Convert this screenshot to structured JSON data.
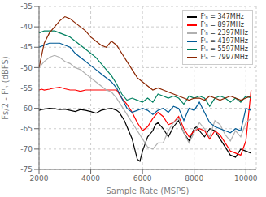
{
  "chart_data": {
    "type": "line",
    "xlabel": "Sample Rate (MSPS)",
    "ylabel": "Fs/2 - Fᴵₙ (dBFS)",
    "xlim": [
      2000,
      10400
    ],
    "ylim": [
      -75,
      -35
    ],
    "xticks": [
      2000,
      4000,
      6000,
      8000,
      10000
    ],
    "yticks": [
      -75,
      -70,
      -65,
      -60,
      -55,
      -50,
      -45,
      -40,
      -35
    ],
    "grid": true,
    "legend": "upper right",
    "series": [
      {
        "name": "Fᴵₙ = 347MHz",
        "color": "#000000",
        "x": [
          2000,
          2100,
          2200,
          2400,
          2600,
          2800,
          3000,
          3200,
          3400,
          3600,
          3800,
          4000,
          4200,
          4400,
          4600,
          4800,
          5000,
          5100,
          5200,
          5300,
          5400,
          5500,
          5600,
          5700,
          5800,
          5900,
          6000,
          6200,
          6400,
          6500,
          6600,
          6800,
          7000,
          7200,
          7400,
          7600,
          7800,
          8000,
          8100,
          8200,
          8400,
          8600,
          8800,
          9000,
          9200,
          9400,
          9600,
          9800,
          10000,
          10200
        ],
        "values": [
          -60.5,
          -60.3,
          -60.2,
          -60.0,
          -60.1,
          -60.3,
          -60.2,
          -60.5,
          -60.8,
          -60.3,
          -60.5,
          -60.8,
          -61.2,
          -60.5,
          -60.2,
          -60.0,
          -60.5,
          -61.0,
          -62.0,
          -63.0,
          -64.5,
          -66.0,
          -67.5,
          -70.0,
          -72.5,
          -73.0,
          -70.5,
          -67.0,
          -65.5,
          -64.0,
          -63.5,
          -65.0,
          -67.0,
          -64.5,
          -63.0,
          -66.0,
          -68.0,
          -65.0,
          -64.5,
          -65.5,
          -67.0,
          -65.0,
          -65.5,
          -67.5,
          -69.5,
          -71.5,
          -72.0,
          -70.0,
          -70.5,
          -71.0
        ]
      },
      {
        "name": "Fᴵₙ = 897MHz",
        "color": "#ff0000",
        "x": [
          2000,
          2100,
          2200,
          2400,
          2600,
          2800,
          3000,
          3200,
          3400,
          3600,
          3800,
          4000,
          4200,
          4400,
          4600,
          4800,
          5000,
          5200,
          5400,
          5600,
          5800,
          6000,
          6200,
          6400,
          6600,
          6800,
          7000,
          7200,
          7400,
          7600,
          7800,
          8000,
          8200,
          8400,
          8600,
          8800,
          9000,
          9200,
          9400,
          9600,
          9800,
          10000,
          10200
        ],
        "values": [
          -55.5,
          -55.3,
          -55.5,
          -55.3,
          -55.0,
          -54.8,
          -55.2,
          -55.5,
          -55.5,
          -55.8,
          -55.5,
          -55.5,
          -55.5,
          -55.5,
          -55.5,
          -55.5,
          -55.5,
          -57.5,
          -59.0,
          -61.0,
          -63.5,
          -65.5,
          -64.5,
          -62.5,
          -61.0,
          -62.0,
          -64.0,
          -63.5,
          -62.0,
          -65.0,
          -67.0,
          -65.5,
          -65.0,
          -65.5,
          -67.5,
          -65.5,
          -66.5,
          -68.5,
          -70.5,
          -71.0,
          -71.5,
          -68.0,
          -55.5
        ]
      },
      {
        "name": "Fᴵₙ = 2397MHz",
        "color": "#b0b0b0",
        "x": [
          2000,
          2200,
          2400,
          2600,
          2800,
          3000,
          3200,
          3400,
          3600,
          3800,
          4000,
          4200,
          4400,
          4600,
          4800,
          5000,
          5200,
          5400,
          5600,
          5800,
          6000,
          6200,
          6400,
          6600,
          6800,
          7000,
          7200,
          7400,
          7600,
          7800,
          8000,
          8200,
          8400,
          8600,
          8800,
          9000,
          9200,
          9400,
          9600,
          9800,
          10000,
          10200
        ],
        "values": [
          -50.0,
          -48.5,
          -47.5,
          -47.0,
          -47.5,
          -48.5,
          -49.0,
          -50.0,
          -50.5,
          -51.5,
          -52.5,
          -53.5,
          -54.5,
          -55.5,
          -56.0,
          -57.5,
          -59.5,
          -61.5,
          -63.5,
          -65.5,
          -67.5,
          -69.5,
          -70.0,
          -68.5,
          -68.5,
          -65.5,
          -63.5,
          -62.5,
          -66.0,
          -68.5,
          -66.0,
          -63.5,
          -65.0,
          -67.0,
          -63.0,
          -64.0,
          -66.5,
          -68.0,
          -65.5,
          -67.0,
          -63.5,
          -62.5
        ]
      },
      {
        "name": "Fᴵₙ = 4197MHz",
        "color": "#005b96",
        "x": [
          2000,
          2200,
          2400,
          2600,
          2800,
          3000,
          3200,
          3400,
          3600,
          3800,
          4000,
          4200,
          4400,
          4600,
          4800,
          5000,
          5200,
          5400,
          5600,
          5800,
          6000,
          6200,
          6400,
          6600,
          6800,
          7000,
          7200,
          7400,
          7600,
          7800,
          8000,
          8200,
          8400,
          8600,
          8800,
          9000,
          9200,
          9400,
          9600,
          9800,
          10000,
          10200
        ],
        "values": [
          -45.0,
          -44.5,
          -44.0,
          -44.0,
          -44.0,
          -44.5,
          -45.0,
          -46.5,
          -47.5,
          -48.5,
          -49.5,
          -50.5,
          -51.5,
          -52.5,
          -53.5,
          -55.0,
          -57.5,
          -60.0,
          -61.0,
          -60.5,
          -60.0,
          -60.5,
          -61.5,
          -60.5,
          -60.0,
          -61.0,
          -59.5,
          -60.0,
          -63.0,
          -60.0,
          -60.5,
          -58.5,
          -61.0,
          -63.5,
          -64.5,
          -65.0,
          -65.5,
          -66.0,
          -65.0,
          -65.5,
          -60.0,
          -60.5
        ]
      },
      {
        "name": "Fᴵₙ = 5597MHz",
        "color": "#008060",
        "x": [
          2000,
          2200,
          2400,
          2600,
          2800,
          3000,
          3200,
          3400,
          3600,
          3800,
          4000,
          4200,
          4400,
          4600,
          4800,
          5000,
          5200,
          5400,
          5600,
          5800,
          6000,
          6200,
          6400,
          6600,
          6800,
          7000,
          7200,
          7400,
          7600,
          7800,
          8000,
          8200,
          8400,
          8600,
          8800,
          9000,
          9200,
          9400,
          9600,
          9800,
          10000,
          10200
        ],
        "values": [
          -41.5,
          -41.0,
          -41.0,
          -41.0,
          -41.5,
          -42.0,
          -42.5,
          -43.5,
          -44.5,
          -45.5,
          -46.5,
          -47.5,
          -49.0,
          -50.5,
          -52.0,
          -54.0,
          -56.5,
          -58.0,
          -57.5,
          -58.0,
          -58.5,
          -57.5,
          -58.5,
          -56.5,
          -57.0,
          -57.5,
          -57.0,
          -57.5,
          -59.0,
          -57.0,
          -57.5,
          -57.0,
          -57.5,
          -59.5,
          -57.5,
          -57.0,
          -57.5,
          -58.5,
          -57.5,
          -58.5,
          -57.0,
          -57.5
        ]
      },
      {
        "name": "Fᴵₙ = 7997MHz",
        "color": "#8b2500",
        "x": [
          2000,
          2200,
          2400,
          2600,
          2800,
          3000,
          3200,
          3400,
          3600,
          3800,
          4000,
          4200,
          4400,
          4600,
          4800,
          5000,
          5200,
          5400,
          5600,
          5800,
          6000,
          6200,
          6400,
          6600,
          6800,
          7000,
          7200,
          7400,
          7600,
          7800,
          8000,
          8200,
          8400,
          8600,
          8800,
          9000,
          9200,
          9400,
          9600,
          9800,
          10000,
          10200
        ],
        "values": [
          -50.0,
          -44.0,
          -41.5,
          -40.0,
          -38.5,
          -37.5,
          -38.0,
          -39.0,
          -40.0,
          -41.0,
          -42.5,
          -43.5,
          -44.5,
          -45.0,
          -43.5,
          -44.5,
          -46.5,
          -48.5,
          -50.5,
          -52.5,
          -53.5,
          -54.5,
          -55.5,
          -55.0,
          -55.5,
          -56.0,
          -56.5,
          -57.0,
          -57.5,
          -58.0,
          -57.5,
          -57.5,
          -58.0,
          -57.0,
          -57.5,
          -58.0,
          -57.5,
          -57.0,
          -57.5,
          -58.0,
          -57.5,
          -57.0
        ]
      }
    ]
  }
}
